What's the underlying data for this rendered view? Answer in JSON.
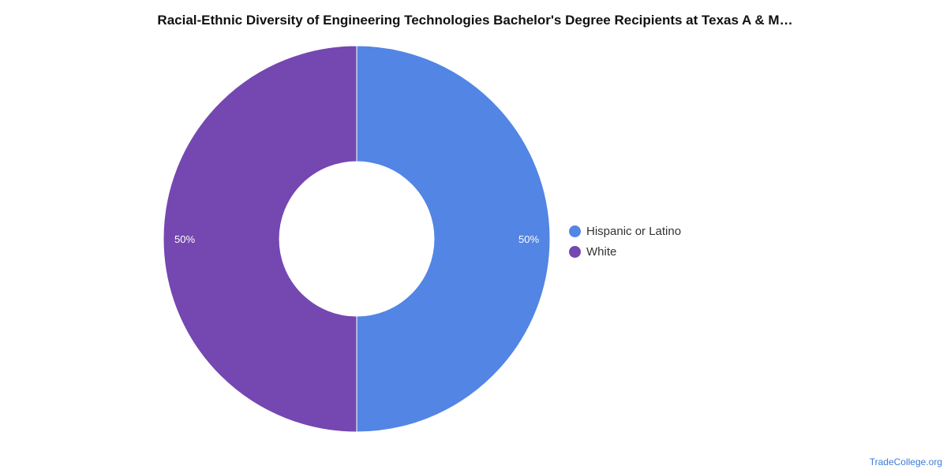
{
  "chart_data": {
    "type": "pie",
    "title": "Racial-Ethnic Diversity of Engineering Technologies Bachelor's Degree Recipients at Texas A & M…",
    "series": [
      {
        "name": "Hispanic or Latino",
        "value": 50,
        "label": "50%",
        "color": "#5285e4"
      },
      {
        "name": "White",
        "value": 50,
        "label": "50%",
        "color": "#7547b0"
      }
    ],
    "legend_position": "right",
    "donut": true
  },
  "source": "TradeCollege.org"
}
